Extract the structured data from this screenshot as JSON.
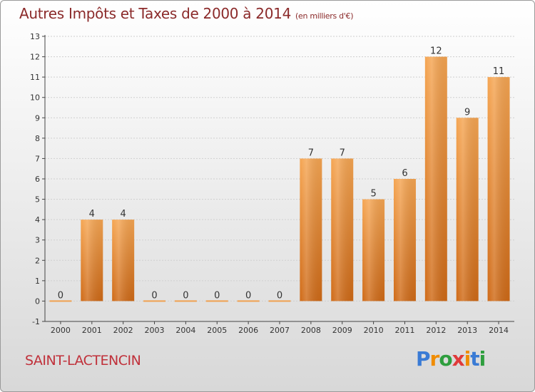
{
  "title": "Autres Impôts et Taxes de 2000 à 2014",
  "unit_note": "(en milliers d'€)",
  "commune": "SAINT-LACTENCIN",
  "logo": {
    "text": "Proxiti",
    "colors": [
      "#3a7bd5",
      "#f08c00",
      "#2e9e3e",
      "#e03a3a",
      "#f08c00",
      "#3a7bd5",
      "#2e9e3e"
    ]
  },
  "chart_data": {
    "type": "bar",
    "title": "Autres Impôts et Taxes de 2000 à 2014",
    "subtitle": "(en milliers d'€)",
    "categories": [
      "2000",
      "2001",
      "2002",
      "2003",
      "2004",
      "2005",
      "2006",
      "2007",
      "2008",
      "2009",
      "2010",
      "2011",
      "2012",
      "2013",
      "2014"
    ],
    "values": [
      0,
      4,
      4,
      0,
      0,
      0,
      0,
      0,
      7,
      7,
      5,
      6,
      12,
      9,
      11
    ],
    "ylim": [
      -1,
      13
    ],
    "yticks": [
      -1,
      0,
      1,
      2,
      3,
      4,
      5,
      6,
      7,
      8,
      9,
      10,
      11,
      12,
      13
    ],
    "grid": true,
    "bar_color": "#f0922e",
    "bar_color_dark": "#cf6a17"
  }
}
